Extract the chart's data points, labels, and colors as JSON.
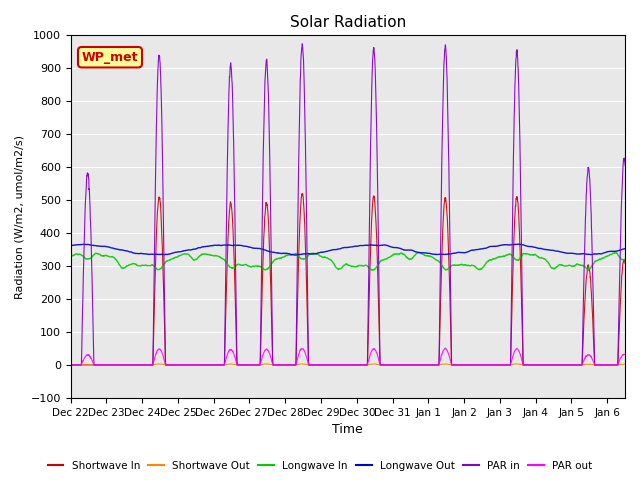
{
  "title": "Solar Radiation",
  "xlabel": "Time",
  "ylabel": "Radiation (W/m2, umol/m2/s)",
  "ylim": [
    -100,
    1000
  ],
  "yticks": [
    -100,
    0,
    100,
    200,
    300,
    400,
    500,
    600,
    700,
    800,
    900,
    1000
  ],
  "xlim_days": 15.5,
  "num_days": 16,
  "bg_color": "#f0f0f0",
  "plot_bg": "#e8e8e8",
  "legend_label": "WP_met",
  "legend_box_color": "#ffff99",
  "legend_box_edge": "#cc0000",
  "colors": {
    "shortwave_in": "#cc0000",
    "shortwave_out": "#ff8800",
    "longwave_in": "#00cc00",
    "longwave_out": "#0000cc",
    "par_in": "#8800cc",
    "par_out": "#ff00ff"
  },
  "x_tick_labels": [
    "Dec 22",
    "Dec 23",
    "Dec 24",
    "Dec 25",
    "Dec 26",
    "Dec 27",
    "Dec 28",
    "Dec 29",
    "Dec 30",
    "Dec 31",
    "Jan 1",
    "Jan 2",
    "Jan 3",
    "Jan 4",
    "Jan 5",
    "Jan 6"
  ],
  "seed": 42
}
